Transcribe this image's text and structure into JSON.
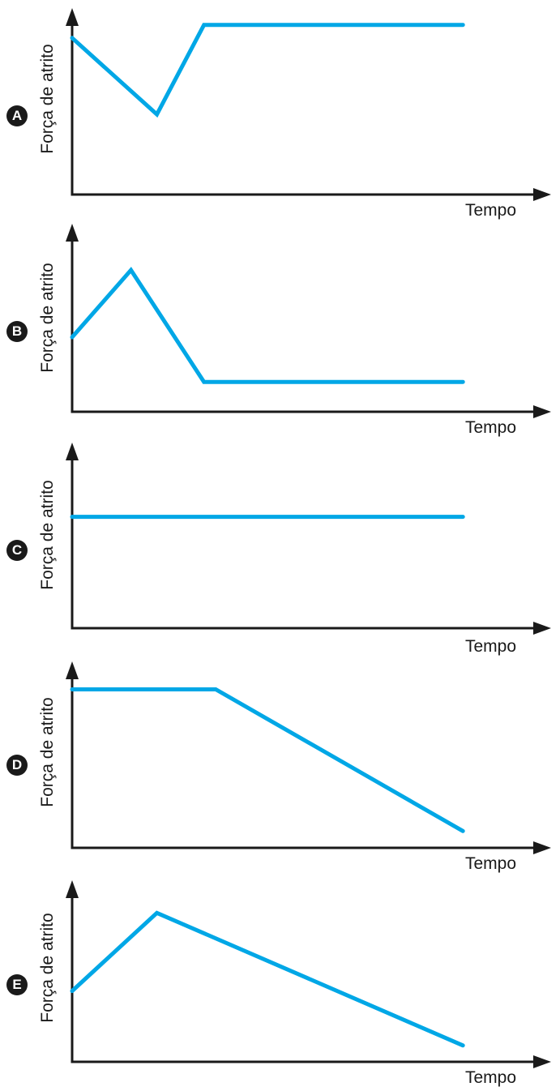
{
  "colors": {
    "series": "#00a7e6",
    "axis": "#1a1a1a"
  },
  "chart_data": [
    {
      "type": "line",
      "panel_label": "A",
      "ylabel": "Força de atrito",
      "xlabel": "Tempo",
      "xlim": [
        0,
        100
      ],
      "ylim": [
        0,
        100
      ],
      "grid": false,
      "series": [
        {
          "x": [
            0,
            18,
            28,
            83
          ],
          "y": [
            84,
            43,
            91,
            91
          ]
        }
      ]
    },
    {
      "type": "line",
      "panel_label": "B",
      "ylabel": "Força de atrito",
      "xlabel": "Tempo",
      "xlim": [
        0,
        100
      ],
      "ylim": [
        0,
        100
      ],
      "grid": false,
      "series": [
        {
          "x": [
            0,
            12.5,
            28,
            83
          ],
          "y": [
            40,
            76,
            16,
            16
          ]
        }
      ]
    },
    {
      "type": "line",
      "panel_label": "C",
      "ylabel": "Força de atrito",
      "xlabel": "Tempo",
      "xlim": [
        0,
        100
      ],
      "ylim": [
        0,
        100
      ],
      "grid": false,
      "series": [
        {
          "x": [
            0,
            83
          ],
          "y": [
            60,
            60
          ]
        }
      ]
    },
    {
      "type": "line",
      "panel_label": "D",
      "ylabel": "Força de atrito",
      "xlabel": "Tempo",
      "xlim": [
        0,
        100
      ],
      "ylim": [
        0,
        100
      ],
      "grid": false,
      "series": [
        {
          "x": [
            0,
            30.5,
            83
          ],
          "y": [
            85,
            85,
            9
          ]
        }
      ]
    },
    {
      "type": "line",
      "panel_label": "E",
      "ylabel": "Força de atrito",
      "xlabel": "Tempo",
      "xlim": [
        0,
        100
      ],
      "ylim": [
        0,
        100
      ],
      "grid": false,
      "series": [
        {
          "x": [
            0,
            18,
            83
          ],
          "y": [
            39,
            82,
            9
          ]
        }
      ]
    }
  ]
}
